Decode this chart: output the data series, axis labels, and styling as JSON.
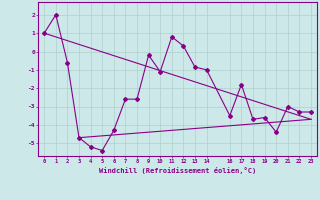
{
  "xlabel": "Windchill (Refroidissement éolien,°C)",
  "background_color": "#cde8e8",
  "grid_color": "#b0d0cc",
  "line_color": "#880088",
  "xlim": [
    -0.5,
    23.5
  ],
  "ylim": [
    -5.7,
    2.7
  ],
  "yticks": [
    -5,
    -4,
    -3,
    -2,
    -1,
    0,
    1,
    2
  ],
  "xticks": [
    0,
    1,
    2,
    3,
    4,
    5,
    6,
    7,
    8,
    9,
    10,
    11,
    12,
    13,
    14,
    16,
    17,
    18,
    19,
    20,
    21,
    22,
    23
  ],
  "series1_x": [
    0,
    1,
    2,
    3,
    4,
    5,
    6,
    7,
    8,
    9,
    10,
    11,
    12,
    13,
    14,
    16,
    17,
    18,
    19,
    20,
    21,
    22,
    23
  ],
  "series1_y": [
    1.0,
    2.0,
    -0.6,
    -4.7,
    -5.2,
    -5.4,
    -4.3,
    -2.6,
    -2.6,
    -0.2,
    -1.1,
    0.8,
    0.3,
    -0.85,
    -1.0,
    -3.5,
    -1.8,
    -3.7,
    -3.6,
    -4.4,
    -3.0,
    -3.3,
    -3.3
  ],
  "series2_x": [
    0,
    23
  ],
  "series2_y": [
    1.0,
    -3.7
  ],
  "series3_x": [
    3,
    23
  ],
  "series3_y": [
    -4.7,
    -3.7
  ]
}
